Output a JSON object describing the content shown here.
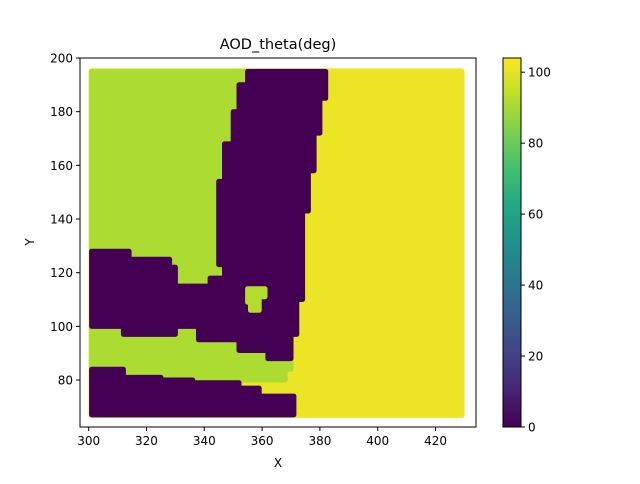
{
  "chart_data": {
    "type": "heatmap",
    "title": "AOD_theta(deg)",
    "xlabel": "X",
    "ylabel": "Y",
    "xlim": [
      297,
      434
    ],
    "ylim": [
      62.5,
      200
    ],
    "xticks": [
      300,
      320,
      340,
      360,
      380,
      400,
      420
    ],
    "yticks": [
      80,
      100,
      120,
      140,
      160,
      180,
      200
    ],
    "colorbar": {
      "colormap": "viridis",
      "range": [
        0,
        104
      ],
      "ticks": [
        0,
        20,
        40,
        60,
        80,
        100
      ]
    },
    "grid": false,
    "point_extent": {
      "x": [
        301,
        429
      ],
      "y": [
        67,
        195
      ]
    },
    "regions": [
      {
        "value": 91,
        "points": [
          [
            301,
            195
          ],
          [
            355,
            195
          ],
          [
            355,
            190
          ],
          [
            352,
            190
          ],
          [
            352,
            180
          ],
          [
            350,
            180
          ],
          [
            350,
            168
          ],
          [
            347,
            168
          ],
          [
            347,
            154
          ],
          [
            345,
            154
          ],
          [
            345,
            123
          ],
          [
            347,
            123
          ],
          [
            347,
            118
          ],
          [
            342,
            118
          ],
          [
            342,
            115
          ],
          [
            330,
            115
          ],
          [
            330,
            122
          ],
          [
            328,
            122
          ],
          [
            328,
            125
          ],
          [
            314,
            125
          ],
          [
            314,
            128
          ],
          [
            301,
            128
          ]
        ]
      },
      {
        "value": 91,
        "points": [
          [
            301,
            100
          ],
          [
            312,
            100
          ],
          [
            312,
            97
          ],
          [
            330,
            97
          ],
          [
            330,
            100
          ],
          [
            338,
            100
          ],
          [
            338,
            95
          ],
          [
            352,
            95
          ],
          [
            352,
            91
          ],
          [
            362,
            91
          ],
          [
            362,
            88
          ],
          [
            370,
            88
          ],
          [
            370,
            84
          ],
          [
            368,
            84
          ],
          [
            368,
            80
          ],
          [
            352,
            80
          ],
          [
            352,
            79
          ],
          [
            336,
            79
          ],
          [
            336,
            80
          ],
          [
            325,
            80
          ],
          [
            325,
            81
          ],
          [
            301,
            81
          ]
        ]
      },
      {
        "value": 91,
        "points": [
          [
            356,
            114
          ],
          [
            360,
            114
          ],
          [
            360,
            106
          ],
          [
            356,
            106
          ]
        ]
      },
      {
        "value": 0,
        "points": [
          [
            355,
            195
          ],
          [
            382,
            195
          ],
          [
            382,
            185
          ],
          [
            380,
            185
          ],
          [
            380,
            172
          ],
          [
            378,
            172
          ],
          [
            378,
            158
          ],
          [
            376,
            158
          ],
          [
            376,
            143
          ],
          [
            374,
            143
          ],
          [
            374,
            110
          ],
          [
            372,
            110
          ],
          [
            372,
            97
          ],
          [
            370,
            97
          ],
          [
            370,
            88
          ],
          [
            362,
            88
          ],
          [
            362,
            91
          ],
          [
            352,
            91
          ],
          [
            352,
            95
          ],
          [
            338,
            95
          ],
          [
            338,
            100
          ],
          [
            330,
            100
          ],
          [
            330,
            97
          ],
          [
            312,
            97
          ],
          [
            312,
            100
          ],
          [
            301,
            100
          ],
          [
            301,
            128
          ],
          [
            314,
            128
          ],
          [
            314,
            125
          ],
          [
            328,
            125
          ],
          [
            328,
            122
          ],
          [
            330,
            122
          ],
          [
            330,
            115
          ],
          [
            342,
            115
          ],
          [
            342,
            118
          ],
          [
            347,
            118
          ],
          [
            347,
            123
          ],
          [
            345,
            123
          ],
          [
            345,
            154
          ],
          [
            347,
            154
          ],
          [
            347,
            168
          ],
          [
            350,
            168
          ],
          [
            350,
            180
          ],
          [
            352,
            180
          ],
          [
            352,
            190
          ],
          [
            355,
            190
          ]
        ]
      },
      {
        "value": 0,
        "points": [
          [
            301,
            67
          ],
          [
            371,
            67
          ],
          [
            371,
            74
          ],
          [
            359,
            74
          ],
          [
            359,
            77
          ],
          [
            352,
            77
          ],
          [
            352,
            79
          ],
          [
            336,
            79
          ],
          [
            336,
            80
          ],
          [
            325,
            80
          ],
          [
            325,
            81
          ],
          [
            312,
            81
          ],
          [
            312,
            84
          ],
          [
            301,
            84
          ]
        ]
      },
      {
        "value": 92,
        "points": [
          [
            355,
            114
          ],
          [
            361,
            114
          ],
          [
            361,
            111
          ],
          [
            359,
            111
          ],
          [
            359,
            106
          ],
          [
            356,
            106
          ],
          [
            356,
            109
          ],
          [
            355,
            109
          ]
        ]
      }
    ],
    "background_gradient": {
      "top_left": 101,
      "top_right": 103,
      "bottom_left": 97,
      "bottom_right": 101
    }
  }
}
